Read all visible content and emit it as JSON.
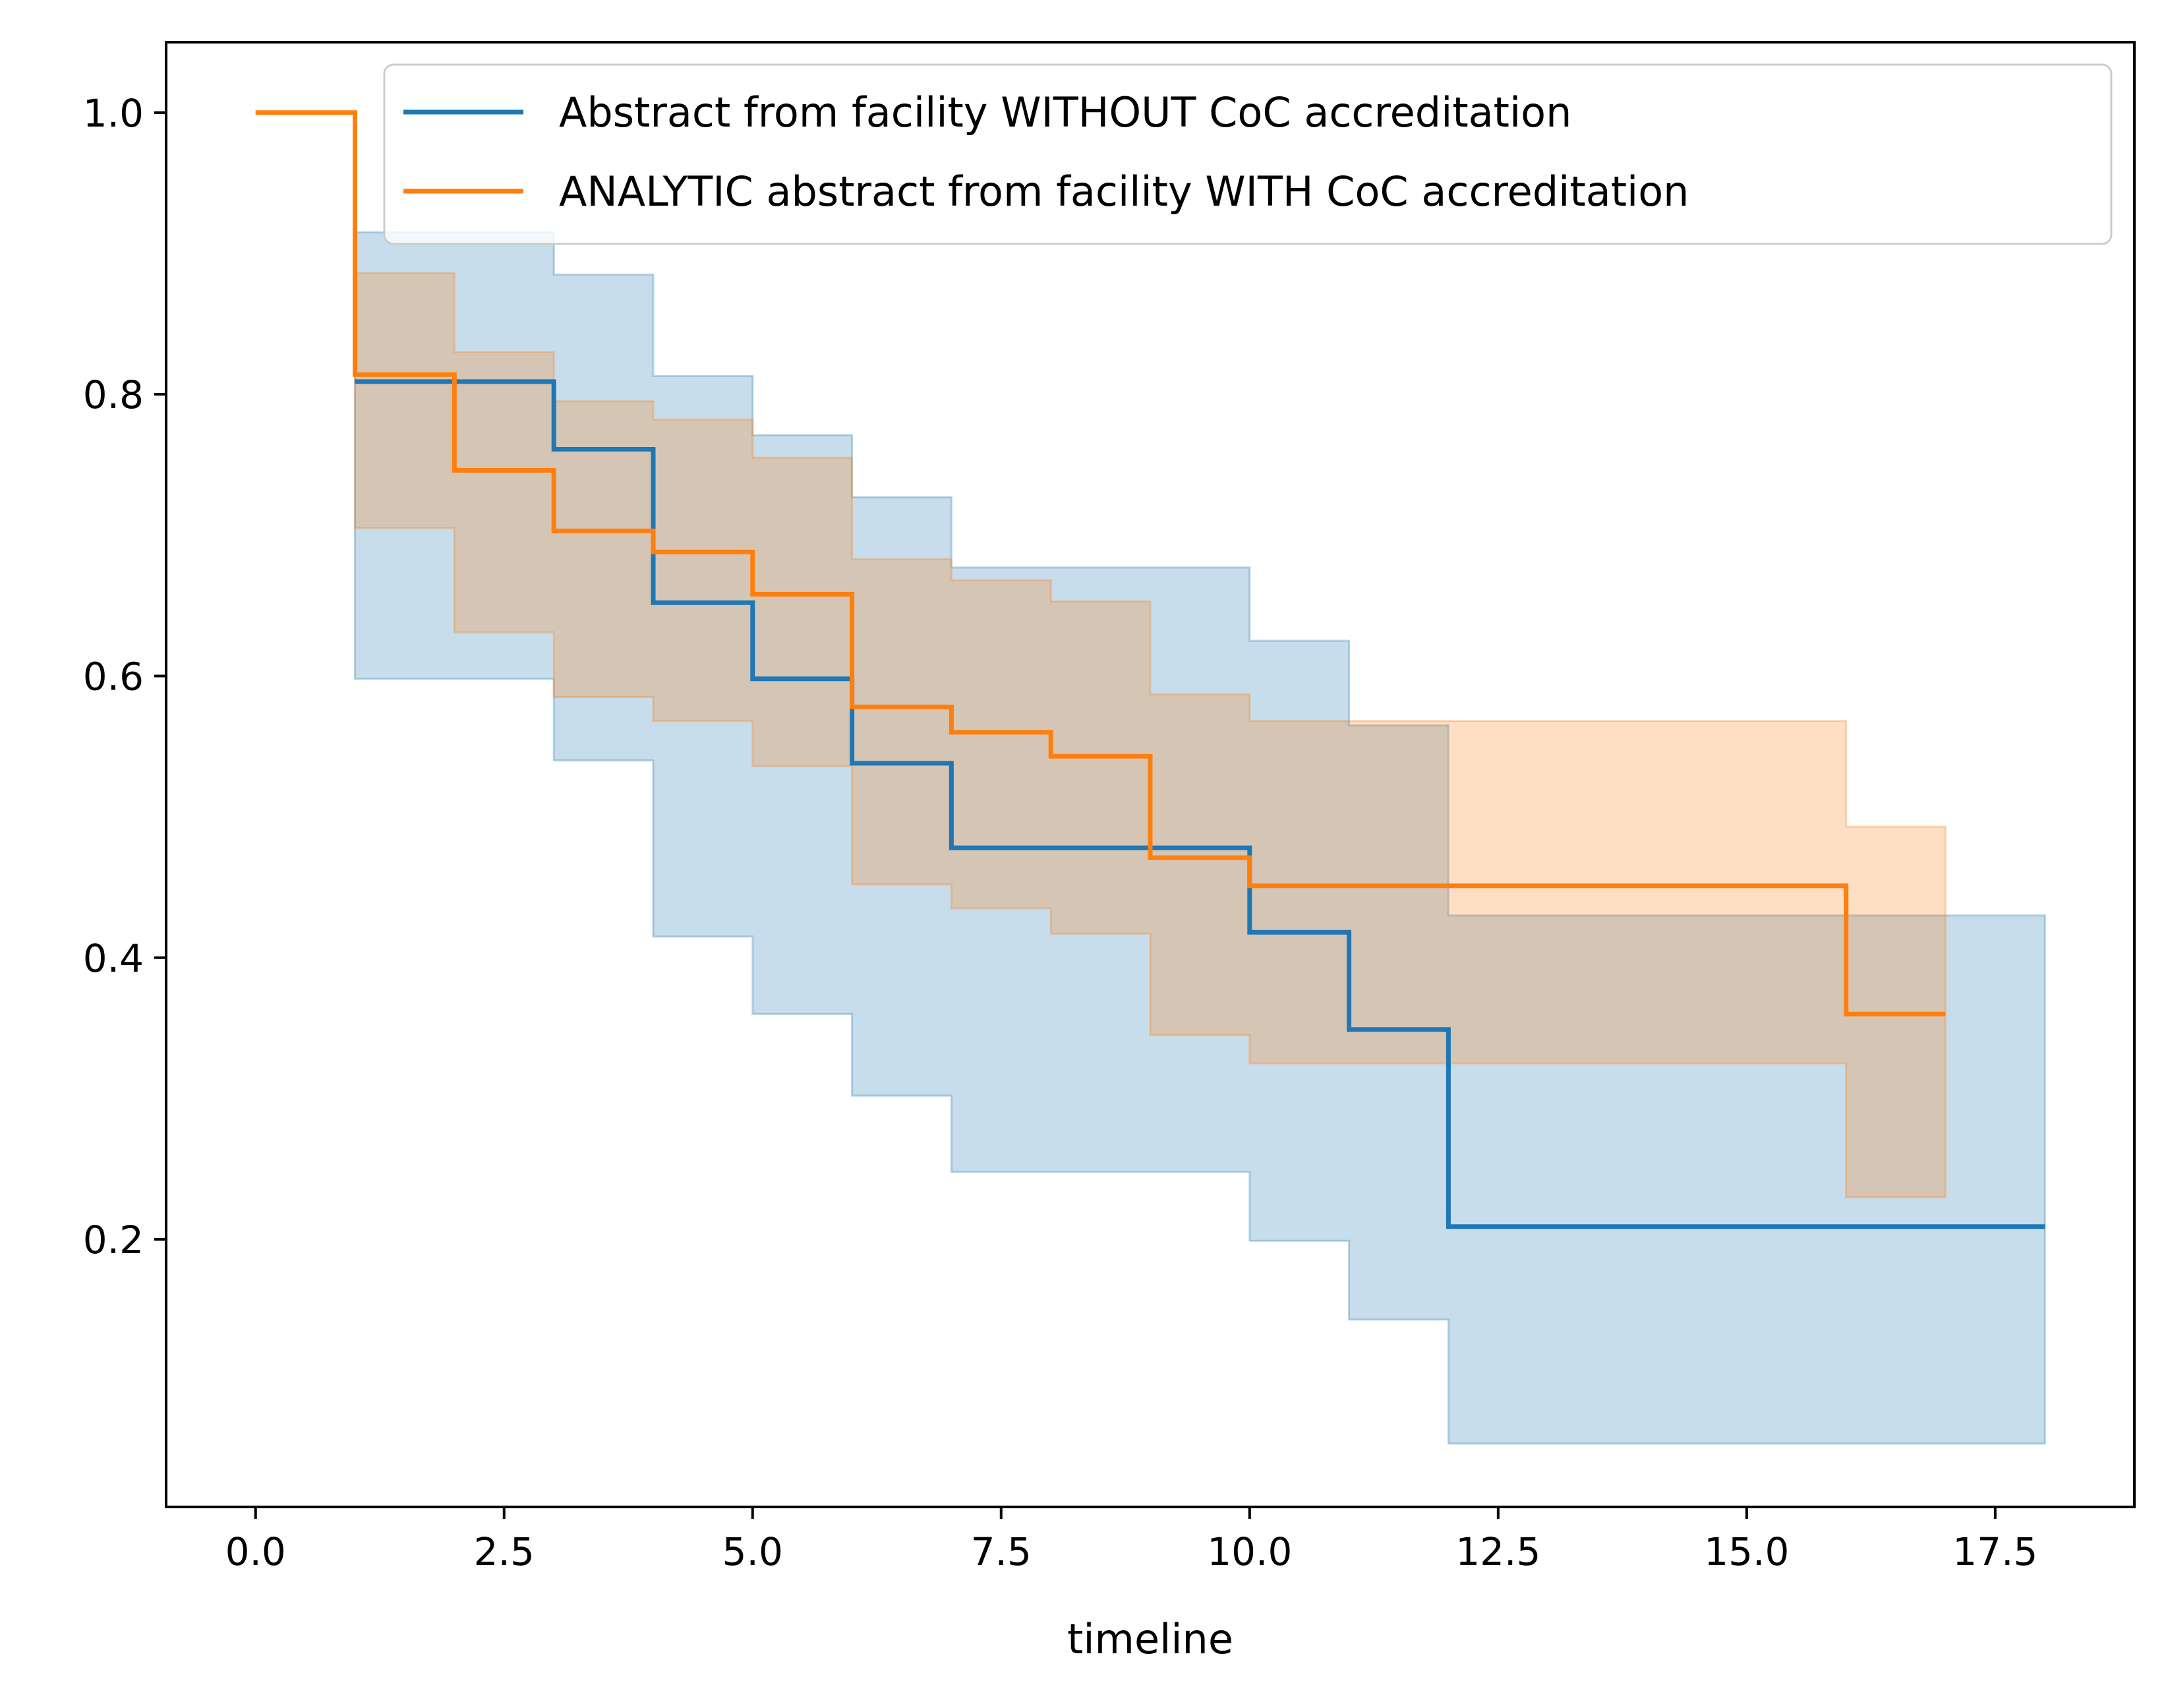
{
  "chart_data": {
    "type": "line",
    "subtype": "kaplan-meier step survival curves with confidence bands",
    "title": "",
    "xlabel": "timeline",
    "ylabel": "",
    "xlim": [
      -0.9,
      18.9
    ],
    "ylim": [
      0.01,
      1.05
    ],
    "xticks": [
      0.0,
      2.5,
      5.0,
      7.5,
      10.0,
      12.5,
      15.0,
      17.5
    ],
    "xtick_labels": [
      "0.0",
      "2.5",
      "5.0",
      "7.5",
      "10.0",
      "12.5",
      "15.0",
      "17.5"
    ],
    "yticks": [
      0.2,
      0.4,
      0.6,
      0.8,
      1.0
    ],
    "ytick_labels": [
      "0.2",
      "0.4",
      "0.6",
      "0.8",
      "1.0"
    ],
    "grid": false,
    "legend_position": "top-right",
    "series": [
      {
        "name": "Abstract from facility WITHOUT CoC accreditation",
        "color": "#1f77b4",
        "x": [
          1,
          3,
          4,
          5,
          6,
          7,
          10,
          11,
          12,
          18
        ],
        "y": [
          0.809,
          0.761,
          0.652,
          0.598,
          0.538,
          0.478,
          0.418,
          0.349,
          0.209,
          0.209
        ],
        "ci_lower": [
          0.598,
          0.54,
          0.415,
          0.36,
          0.302,
          0.248,
          0.199,
          0.143,
          0.055,
          0.055
        ],
        "ci_upper": [
          0.915,
          0.885,
          0.813,
          0.771,
          0.727,
          0.677,
          0.625,
          0.565,
          0.43,
          0.43
        ]
      },
      {
        "name": "ANALYTIC abstract from facility WITH CoC accreditation",
        "color": "#ff7f0e",
        "x": [
          0,
          1,
          2,
          3,
          4,
          5,
          6,
          7,
          8,
          9,
          10,
          16,
          17
        ],
        "y": [
          1.0,
          0.814,
          0.746,
          0.703,
          0.688,
          0.658,
          0.578,
          0.56,
          0.543,
          0.471,
          0.451,
          0.36,
          0.36
        ],
        "ci_lower": [
          1.0,
          0.705,
          0.631,
          0.585,
          0.568,
          0.536,
          0.452,
          0.435,
          0.417,
          0.345,
          0.325,
          0.23,
          0.23
        ],
        "ci_upper": [
          1.0,
          0.886,
          0.83,
          0.795,
          0.782,
          0.755,
          0.683,
          0.668,
          0.653,
          0.587,
          0.568,
          0.493,
          0.493
        ]
      }
    ]
  }
}
